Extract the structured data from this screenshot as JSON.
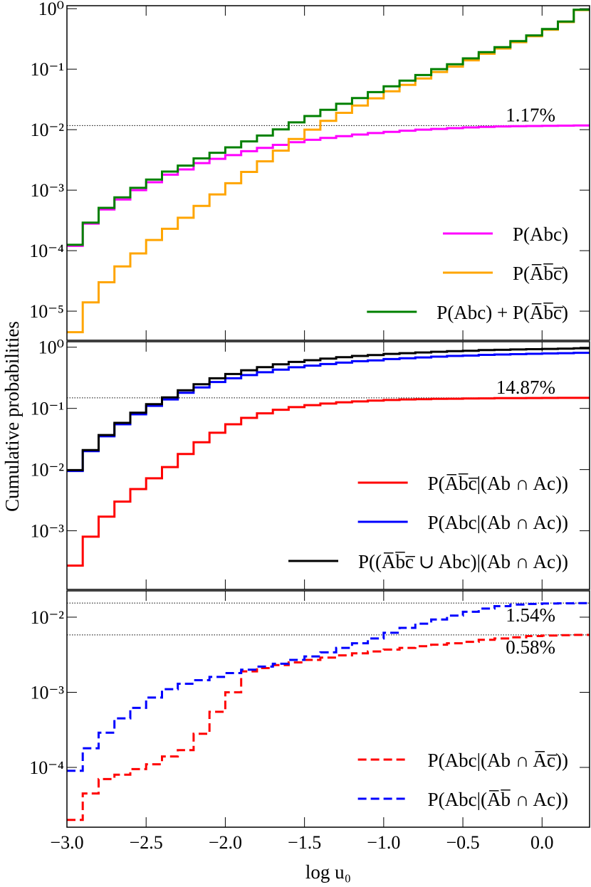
{
  "chart_data": [
    {
      "type": "step",
      "log_y": true,
      "legend": "lower right",
      "x": [
        -3.0,
        -2.9,
        -2.8,
        -2.7,
        -2.6,
        -2.5,
        -2.4,
        -2.3,
        -2.2,
        -2.1,
        -2.0,
        -1.9,
        -1.8,
        -1.7,
        -1.6,
        -1.5,
        -1.4,
        -1.3,
        -1.2,
        -1.1,
        -1.0,
        -0.9,
        -0.8,
        -0.7,
        -0.6,
        -0.5,
        -0.4,
        -0.3,
        -0.2,
        -0.1,
        0.0,
        0.1,
        0.2
      ],
      "xlim": [
        -3.0,
        0.3
      ],
      "ylim": [
        3.3e-06,
        1.12
      ],
      "yticks": [
        {
          "value": 1,
          "label": "10⁰"
        },
        {
          "value": 0.1,
          "label": "10⁻¹"
        },
        {
          "value": 0.01,
          "label": "10⁻²"
        },
        {
          "value": 0.001,
          "label": "10⁻³"
        },
        {
          "value": 0.0001,
          "label": "10⁻⁴"
        },
        {
          "value": 1e-05,
          "label": "10⁻⁵"
        }
      ],
      "hlines": [
        {
          "value": 0.0117,
          "label": "1.17%"
        }
      ],
      "series": [
        {
          "name": "P(Abc)",
          "color": "#ff00ff",
          "values": [
            0.00012,
            0.00028,
            0.00048,
            0.0007,
            0.001,
            0.00135,
            0.0018,
            0.0022,
            0.0028,
            0.0033,
            0.0038,
            0.0044,
            0.005,
            0.0056,
            0.0062,
            0.0068,
            0.0073,
            0.0078,
            0.0083,
            0.0088,
            0.0092,
            0.0096,
            0.01,
            0.0103,
            0.0106,
            0.0109,
            0.0111,
            0.0113,
            0.0114,
            0.0115,
            0.0116,
            0.01165,
            0.0117
          ]
        },
        {
          "name": "P(A̅b̅c̅)",
          "color": "#ffa500",
          "values": [
            4.5e-06,
            1.4e-05,
            3e-05,
            5.5e-05,
            9e-05,
            0.00015,
            0.00023,
            0.00035,
            0.00055,
            0.00085,
            0.0013,
            0.002,
            0.003,
            0.0045,
            0.007,
            0.01,
            0.014,
            0.019,
            0.025,
            0.033,
            0.043,
            0.055,
            0.07,
            0.09,
            0.11,
            0.14,
            0.18,
            0.22,
            0.28,
            0.35,
            0.45,
            0.6,
            0.95
          ]
        },
        {
          "name": "P(Abc) + P(A̅b̅c̅)",
          "color": "#008000",
          "values": [
            0.000125,
            0.00029,
            0.00051,
            0.00076,
            0.00109,
            0.0015,
            0.00203,
            0.00255,
            0.00335,
            0.00415,
            0.0051,
            0.0064,
            0.008,
            0.0101,
            0.0132,
            0.0168,
            0.0213,
            0.0268,
            0.0333,
            0.0418,
            0.0522,
            0.0646,
            0.08,
            0.1003,
            0.1206,
            0.1509,
            0.1911,
            0.2313,
            0.2914,
            0.3615,
            0.4616,
            0.6117,
            0.9617
          ]
        }
      ]
    },
    {
      "type": "step",
      "log_y": true,
      "legend": "lower right",
      "ylabel": "Cumulative probabilities",
      "x": [
        -3.0,
        -2.9,
        -2.8,
        -2.7,
        -2.6,
        -2.5,
        -2.4,
        -2.3,
        -2.2,
        -2.1,
        -2.0,
        -1.9,
        -1.8,
        -1.7,
        -1.6,
        -1.5,
        -1.4,
        -1.3,
        -1.2,
        -1.1,
        -1.0,
        -0.9,
        -0.8,
        -0.7,
        -0.6,
        -0.5,
        -0.4,
        -0.3,
        -0.2,
        -0.1,
        0.0,
        0.1,
        0.2
      ],
      "xlim": [
        -3.0,
        0.3
      ],
      "ylim": [
        0.00011,
        1.23
      ],
      "yticks": [
        {
          "value": 1,
          "label": "10⁰"
        },
        {
          "value": 0.1,
          "label": "10⁻¹"
        },
        {
          "value": 0.01,
          "label": "10⁻²"
        },
        {
          "value": 0.001,
          "label": "10⁻³"
        }
      ],
      "hlines": [
        {
          "value": 0.1487,
          "label": "14.87%"
        }
      ],
      "series": [
        {
          "name": "P(A̅b̅c̅|(Ab ∩ Ac))",
          "color": "#ff0000",
          "values": [
            0.00027,
            0.0008,
            0.0017,
            0.003,
            0.0048,
            0.0072,
            0.011,
            0.018,
            0.028,
            0.04,
            0.055,
            0.07,
            0.083,
            0.095,
            0.105,
            0.113,
            0.12,
            0.126,
            0.13,
            0.134,
            0.137,
            0.14,
            0.1415,
            0.143,
            0.144,
            0.145,
            0.146,
            0.147,
            0.1475,
            0.148,
            0.1483,
            0.1485,
            0.1487
          ]
        },
        {
          "name": "P(Abc|(Ab ∩ Ac))",
          "color": "#0000ff",
          "values": [
            0.0095,
            0.02,
            0.035,
            0.055,
            0.08,
            0.11,
            0.14,
            0.18,
            0.22,
            0.27,
            0.31,
            0.35,
            0.39,
            0.43,
            0.47,
            0.5,
            0.53,
            0.56,
            0.59,
            0.61,
            0.64,
            0.66,
            0.68,
            0.7,
            0.72,
            0.73,
            0.75,
            0.76,
            0.77,
            0.78,
            0.79,
            0.8,
            0.81
          ]
        },
        {
          "name": "P((A̅b̅c̅ ∪ Abc)|(Ab ∩ Ac))",
          "color": "#000000",
          "values": [
            0.0098,
            0.0208,
            0.0367,
            0.058,
            0.0848,
            0.117,
            0.151,
            0.198,
            0.248,
            0.31,
            0.365,
            0.42,
            0.473,
            0.525,
            0.575,
            0.613,
            0.65,
            0.686,
            0.72,
            0.744,
            0.777,
            0.8,
            0.8215,
            0.843,
            0.864,
            0.875,
            0.896,
            0.907,
            0.9175,
            0.928,
            0.938,
            0.9485,
            0.9587
          ]
        }
      ]
    },
    {
      "type": "step",
      "log_y": true,
      "legend": "lower right",
      "linestyle": "dashed",
      "xlabel": "log u₀",
      "x": [
        -3.0,
        -2.9,
        -2.8,
        -2.7,
        -2.6,
        -2.5,
        -2.4,
        -2.3,
        -2.2,
        -2.1,
        -2.0,
        -1.9,
        -1.8,
        -1.7,
        -1.6,
        -1.5,
        -1.4,
        -1.3,
        -1.2,
        -1.1,
        -1.0,
        -0.9,
        -0.8,
        -0.7,
        -0.6,
        -0.5,
        -0.4,
        -0.3,
        -0.2,
        -0.1,
        0.0,
        0.1,
        0.2
      ],
      "xlim": [
        -3.0,
        0.3
      ],
      "ylim": [
        1.6e-05,
        0.0224
      ],
      "xticks": [
        {
          "value": -3.0,
          "label": "−3.0"
        },
        {
          "value": -2.5,
          "label": "−2.5"
        },
        {
          "value": -2.0,
          "label": "−2.0"
        },
        {
          "value": -1.5,
          "label": "−1.5"
        },
        {
          "value": -1.0,
          "label": "−1.0"
        },
        {
          "value": -0.5,
          "label": "−0.5"
        },
        {
          "value": 0.0,
          "label": "0.0"
        }
      ],
      "yticks": [
        {
          "value": 0.01,
          "label": "10⁻²"
        },
        {
          "value": 0.001,
          "label": "10⁻³"
        },
        {
          "value": 0.0001,
          "label": "10⁻⁴"
        }
      ],
      "hlines": [
        {
          "value": 0.0154,
          "label": "1.54%"
        },
        {
          "value": 0.0058,
          "label": "0.58%"
        }
      ],
      "series": [
        {
          "name": "P(Abc|(Ab ∩ A̅c̅))",
          "color": "#ff0000",
          "values": [
            2e-05,
            4.5e-05,
            7e-05,
            8e-05,
            9.5e-05,
            0.00011,
            0.00014,
            0.00017,
            0.00028,
            0.00055,
            0.001,
            0.0019,
            0.0021,
            0.0023,
            0.0025,
            0.0027,
            0.0029,
            0.0031,
            0.0033,
            0.0035,
            0.0037,
            0.0039,
            0.0041,
            0.0043,
            0.0045,
            0.0047,
            0.005,
            0.0052,
            0.0054,
            0.0056,
            0.0057,
            0.00575,
            0.0058
          ]
        },
        {
          "name": "P(Abc|(A̅b̅ ∩ Ac))",
          "color": "#0000ff",
          "values": [
            9e-05,
            0.00018,
            0.00029,
            0.00045,
            0.00062,
            0.00085,
            0.0011,
            0.0013,
            0.00145,
            0.0016,
            0.0018,
            0.002,
            0.0022,
            0.0024,
            0.0027,
            0.003,
            0.0034,
            0.0039,
            0.0045,
            0.0052,
            0.0062,
            0.0072,
            0.0082,
            0.0093,
            0.0105,
            0.0118,
            0.013,
            0.014,
            0.0147,
            0.015,
            0.0152,
            0.0153,
            0.0154
          ]
        }
      ]
    }
  ]
}
